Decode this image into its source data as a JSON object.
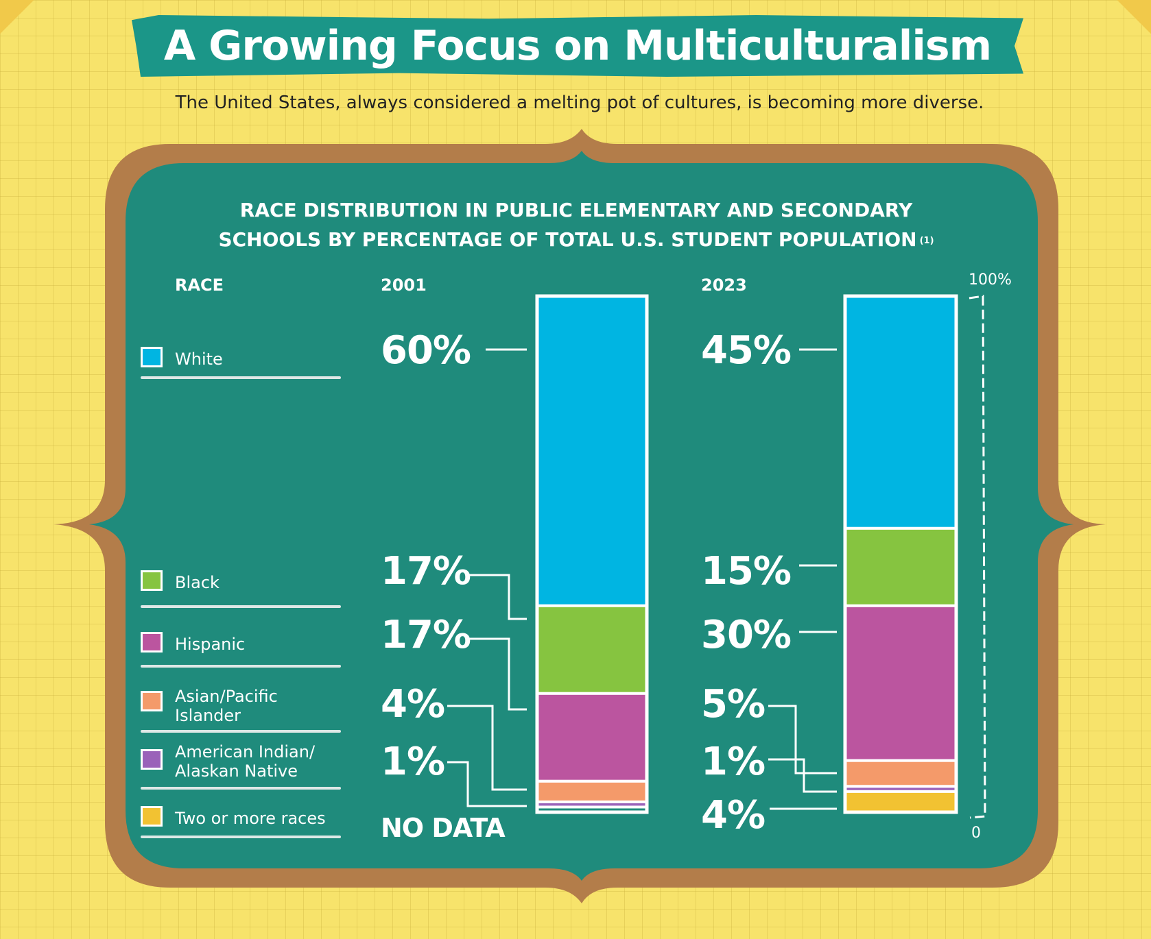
{
  "header": {
    "title": "A Growing Focus on Multiculturalism",
    "subtitle": "The United States, always considered a melting pot of cultures, is becoming more diverse."
  },
  "colors": {
    "white": "#00b5e2",
    "black": "#86c440",
    "hispanic": "#bb559f",
    "asian_pacific_islander": "#f49a6a",
    "american_indian_alaskan_native": "#9a62b9",
    "two_or_more_races": "#f2c232",
    "board": "#1f8b7c",
    "frame": "#b37d4a"
  },
  "chart_data": {
    "type": "bar",
    "stacked": true,
    "title_line1": "RACE DISTRIBUTION IN PUBLIC ELEMENTARY AND SECONDARY",
    "title_line2": "SCHOOLS BY PERCENTAGE OF TOTAL U.S. STUDENT POPULATION",
    "footnote": "(1)",
    "legend_header": "RACE",
    "categories": [
      "2001",
      "2023"
    ],
    "ylim": [
      0,
      100
    ],
    "y_axis_top_label": "100%",
    "y_axis_bottom_label": "0",
    "series": [
      {
        "name": "White",
        "key": "white",
        "values": [
          60,
          45
        ],
        "labels": [
          "60%",
          "45%"
        ]
      },
      {
        "name": "Black",
        "key": "black",
        "values": [
          17,
          15
        ],
        "labels": [
          "17%",
          "15%"
        ]
      },
      {
        "name": "Hispanic",
        "key": "hispanic",
        "values": [
          17,
          30
        ],
        "labels": [
          "17%",
          "30%"
        ]
      },
      {
        "name": "Asian/Pacific Islander",
        "key": "asian_pacific_islander",
        "values": [
          4,
          5
        ],
        "labels": [
          "4%",
          "5%"
        ]
      },
      {
        "name": "American Indian/ Alaskan Native",
        "key": "american_indian_alaskan_native",
        "values": [
          1,
          1
        ],
        "labels": [
          "1%",
          "1%"
        ]
      },
      {
        "name": "Two or more races",
        "key": "two_or_more_races",
        "values": [
          null,
          4
        ],
        "labels": [
          "NO DATA",
          "4%"
        ]
      }
    ]
  }
}
